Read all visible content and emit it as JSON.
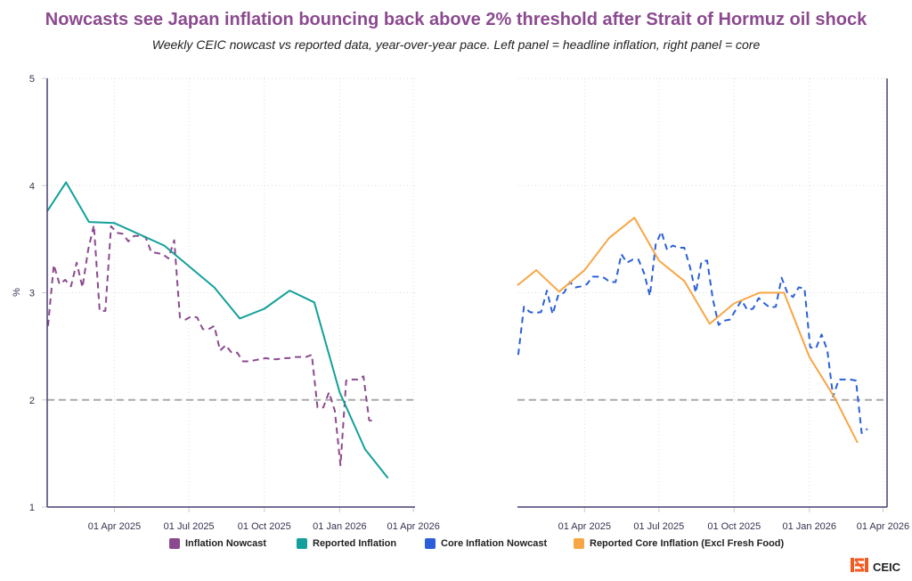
{
  "chart_data": [
    {
      "type": "line",
      "panel": "left",
      "title": "Nowcasts see Japan inflation bouncing back above 2% threshold after Strait of Hormuz oil shock",
      "subtitle": "Weekly CEIC nowcast vs reported data, year-over-year pace. Left panel = headline inflation, right panel = core",
      "ylabel": "%",
      "xlabel": "",
      "ylim": [
        1,
        5
      ],
      "yticks": [
        "1",
        "2",
        "3",
        "4",
        "5"
      ],
      "xlim": [
        "2025-01-09",
        "2026-04-03"
      ],
      "xticks": [
        {
          "date": "2025-04-01",
          "label": "01 Apr 2025"
        },
        {
          "date": "2025-07-01",
          "label": "01 Jul 2025"
        },
        {
          "date": "2025-10-01",
          "label": "01 Oct 2025"
        },
        {
          "date": "2026-01-01",
          "label": "01 Jan 2026"
        },
        {
          "date": "2026-04-01",
          "label": "01 Apr 2026"
        }
      ],
      "grid": true,
      "reference_line": {
        "value": 2,
        "style": "dashed",
        "color": "#aaaaaa"
      },
      "series": [
        {
          "name": "Inflation Nowcast",
          "color": "#8b4a8f",
          "style": "dashed",
          "points": [
            [
              "2025-01-10",
              2.69
            ],
            [
              "2025-01-17",
              3.26
            ],
            [
              "2025-01-24",
              3.08
            ],
            [
              "2025-01-31",
              3.12
            ],
            [
              "2025-02-07",
              3.06
            ],
            [
              "2025-02-14",
              3.28
            ],
            [
              "2025-02-21",
              3.05
            ],
            [
              "2025-02-28",
              3.4
            ],
            [
              "2025-03-07",
              3.63
            ],
            [
              "2025-03-14",
              2.83
            ],
            [
              "2025-03-21",
              2.83
            ],
            [
              "2025-03-28",
              3.62
            ],
            [
              "2025-04-04",
              3.56
            ],
            [
              "2025-04-11",
              3.55
            ],
            [
              "2025-04-18",
              3.48
            ],
            [
              "2025-04-25",
              3.53
            ],
            [
              "2025-05-02",
              3.53
            ],
            [
              "2025-05-09",
              3.52
            ],
            [
              "2025-05-16",
              3.38
            ],
            [
              "2025-05-23",
              3.37
            ],
            [
              "2025-05-30",
              3.36
            ],
            [
              "2025-06-06",
              3.32
            ],
            [
              "2025-06-13",
              3.49
            ],
            [
              "2025-06-20",
              2.77
            ],
            [
              "2025-06-27",
              2.75
            ],
            [
              "2025-07-04",
              2.78
            ],
            [
              "2025-07-11",
              2.77
            ],
            [
              "2025-07-18",
              2.66
            ],
            [
              "2025-07-25",
              2.66
            ],
            [
              "2025-08-01",
              2.69
            ],
            [
              "2025-08-08",
              2.46
            ],
            [
              "2025-08-15",
              2.51
            ],
            [
              "2025-08-22",
              2.44
            ],
            [
              "2025-08-29",
              2.44
            ],
            [
              "2025-09-05",
              2.36
            ],
            [
              "2025-09-12",
              2.36
            ],
            [
              "2025-09-19",
              2.37
            ],
            [
              "2025-09-26",
              2.38
            ],
            [
              "2025-10-03",
              2.39
            ],
            [
              "2025-10-10",
              2.38
            ],
            [
              "2025-10-17",
              2.38
            ],
            [
              "2025-10-24",
              2.39
            ],
            [
              "2025-10-31",
              2.39
            ],
            [
              "2025-11-07",
              2.4
            ],
            [
              "2025-11-14",
              2.4
            ],
            [
              "2025-11-21",
              2.4
            ],
            [
              "2025-11-28",
              2.42
            ],
            [
              "2025-12-05",
              1.93
            ],
            [
              "2025-12-12",
              1.93
            ],
            [
              "2025-12-19",
              2.07
            ],
            [
              "2025-12-26",
              1.9
            ],
            [
              "2026-01-02",
              1.39
            ],
            [
              "2026-01-09",
              2.18
            ],
            [
              "2026-01-16",
              2.19
            ],
            [
              "2026-01-23",
              2.19
            ],
            [
              "2026-01-30",
              2.22
            ],
            [
              "2026-02-06",
              1.81
            ],
            [
              "2026-02-13",
              1.8
            ]
          ]
        },
        {
          "name": "Reported Inflation",
          "color": "#13a09a",
          "style": "solid",
          "points": [
            [
              "2025-01-09",
              3.76
            ],
            [
              "2025-02-01",
              4.03
            ],
            [
              "2025-03-01",
              3.66
            ],
            [
              "2025-04-01",
              3.65
            ],
            [
              "2025-06-01",
              3.44
            ],
            [
              "2025-08-01",
              3.05
            ],
            [
              "2025-09-01",
              2.76
            ],
            [
              "2025-10-01",
              2.85
            ],
            [
              "2025-11-01",
              3.02
            ],
            [
              "2025-12-01",
              2.91
            ],
            [
              "2026-01-01",
              2.07
            ],
            [
              "2026-02-01",
              1.54
            ],
            [
              "2026-03-01",
              1.27
            ]
          ]
        }
      ]
    },
    {
      "type": "line",
      "panel": "right",
      "ylabel": "",
      "ylim": [
        1,
        5
      ],
      "xlim": [
        "2025-01-09",
        "2026-04-06"
      ],
      "xticks": [
        {
          "date": "2025-04-01",
          "label": "01 Apr 2025"
        },
        {
          "date": "2025-07-01",
          "label": "01 Jul 2025"
        },
        {
          "date": "2025-10-01",
          "label": "01 Oct 2025"
        },
        {
          "date": "2026-01-01",
          "label": "01 Jan 2026"
        },
        {
          "date": "2026-04-01",
          "label": "01 Apr 2026"
        }
      ],
      "grid": true,
      "reference_line": {
        "value": 2,
        "style": "dashed",
        "color": "#aaaaaa"
      },
      "series": [
        {
          "name": "Core Inflation Nowcast",
          "color": "#2b5fd9",
          "style": "dashed",
          "points": [
            [
              "2025-01-10",
              2.42
            ],
            [
              "2025-01-17",
              2.87
            ],
            [
              "2025-01-24",
              2.82
            ],
            [
              "2025-01-31",
              2.81
            ],
            [
              "2025-02-07",
              2.82
            ],
            [
              "2025-02-14",
              3.02
            ],
            [
              "2025-02-21",
              2.8
            ],
            [
              "2025-02-28",
              2.98
            ],
            [
              "2025-03-07",
              3.0
            ],
            [
              "2025-03-14",
              3.1
            ],
            [
              "2025-03-21",
              3.05
            ],
            [
              "2025-03-28",
              3.06
            ],
            [
              "2025-04-04",
              3.08
            ],
            [
              "2025-04-11",
              3.15
            ],
            [
              "2025-04-18",
              3.15
            ],
            [
              "2025-04-25",
              3.14
            ],
            [
              "2025-05-02",
              3.1
            ],
            [
              "2025-05-09",
              3.1
            ],
            [
              "2025-05-16",
              3.36
            ],
            [
              "2025-05-23",
              3.28
            ],
            [
              "2025-05-30",
              3.31
            ],
            [
              "2025-06-06",
              3.31
            ],
            [
              "2025-06-13",
              3.18
            ],
            [
              "2025-06-20",
              2.97
            ],
            [
              "2025-06-27",
              3.45
            ],
            [
              "2025-07-04",
              3.57
            ],
            [
              "2025-07-11",
              3.4
            ],
            [
              "2025-07-18",
              3.44
            ],
            [
              "2025-07-25",
              3.42
            ],
            [
              "2025-08-01",
              3.42
            ],
            [
              "2025-08-08",
              3.24
            ],
            [
              "2025-08-15",
              3.0
            ],
            [
              "2025-08-22",
              3.29
            ],
            [
              "2025-08-29",
              3.3
            ],
            [
              "2025-09-05",
              2.94
            ],
            [
              "2025-09-12",
              2.7
            ],
            [
              "2025-09-19",
              2.74
            ],
            [
              "2025-09-26",
              2.75
            ],
            [
              "2025-10-03",
              2.84
            ],
            [
              "2025-10-10",
              2.93
            ],
            [
              "2025-10-17",
              2.84
            ],
            [
              "2025-10-24",
              2.85
            ],
            [
              "2025-10-31",
              2.95
            ],
            [
              "2025-11-07",
              2.9
            ],
            [
              "2025-11-14",
              2.86
            ],
            [
              "2025-11-21",
              2.87
            ],
            [
              "2025-11-28",
              3.14
            ],
            [
              "2025-12-05",
              3.0
            ],
            [
              "2025-12-12",
              2.96
            ],
            [
              "2025-12-19",
              3.05
            ],
            [
              "2025-12-26",
              3.04
            ],
            [
              "2026-01-02",
              2.49
            ],
            [
              "2026-01-09",
              2.48
            ],
            [
              "2026-01-16",
              2.61
            ],
            [
              "2026-01-23",
              2.46
            ],
            [
              "2026-01-30",
              2.03
            ],
            [
              "2026-02-06",
              2.19
            ],
            [
              "2026-02-13",
              2.19
            ],
            [
              "2026-02-20",
              2.19
            ],
            [
              "2026-02-27",
              2.18
            ],
            [
              "2026-03-06",
              1.69
            ],
            [
              "2026-03-13",
              1.73
            ]
          ]
        },
        {
          "name": "Reported Core Inflation (Excl Fresh Food)",
          "color": "#f7a645",
          "style": "solid",
          "points": [
            [
              "2025-01-09",
              3.07
            ],
            [
              "2025-02-01",
              3.21
            ],
            [
              "2025-03-01",
              3.01
            ],
            [
              "2025-04-01",
              3.21
            ],
            [
              "2025-05-01",
              3.51
            ],
            [
              "2025-06-01",
              3.7
            ],
            [
              "2025-07-01",
              3.3
            ],
            [
              "2025-08-01",
              3.11
            ],
            [
              "2025-09-01",
              2.71
            ],
            [
              "2025-10-01",
              2.9
            ],
            [
              "2025-11-01",
              3.0
            ],
            [
              "2025-12-01",
              3.0
            ],
            [
              "2026-01-01",
              2.4
            ],
            [
              "2026-02-01",
              2.02
            ],
            [
              "2026-03-01",
              1.6
            ]
          ]
        }
      ]
    }
  ],
  "legend": [
    {
      "label": "Inflation Nowcast",
      "color": "#8b4a8f"
    },
    {
      "label": "Reported Inflation",
      "color": "#13a09a"
    },
    {
      "label": "Core Inflation Nowcast",
      "color": "#2b5fd9"
    },
    {
      "label": "Reported Core Inflation (Excl Fresh Food)",
      "color": "#f7a645"
    }
  ],
  "header": {
    "title": "Nowcasts see Japan inflation bouncing back above 2% threshold after Strait of Hormuz oil shock",
    "subtitle": "Weekly CEIC nowcast vs reported data, year-over-year pace. Left panel = headline inflation, right panel = core"
  },
  "brand": {
    "mark": "⧉",
    "name": "CEIC"
  },
  "axis": {
    "ylabel": "%"
  }
}
